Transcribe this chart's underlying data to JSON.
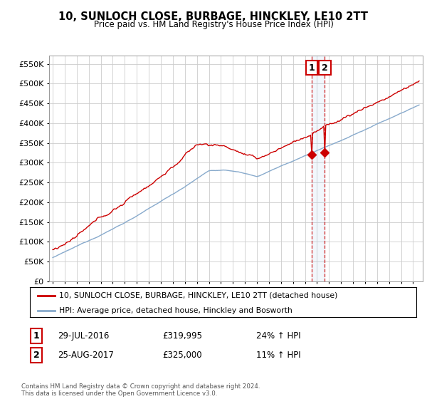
{
  "title": "10, SUNLOCH CLOSE, BURBAGE, HINCKLEY, LE10 2TT",
  "subtitle": "Price paid vs. HM Land Registry's House Price Index (HPI)",
  "legend_line1": "10, SUNLOCH CLOSE, BURBAGE, HINCKLEY, LE10 2TT (detached house)",
  "legend_line2": "HPI: Average price, detached house, Hinckley and Bosworth",
  "transaction1_label": "1",
  "transaction1_date": "29-JUL-2016",
  "transaction1_price": "£319,995",
  "transaction1_hpi": "24% ↑ HPI",
  "transaction2_label": "2",
  "transaction2_date": "25-AUG-2017",
  "transaction2_price": "£325,000",
  "transaction2_hpi": "11% ↑ HPI",
  "footer": "Contains HM Land Registry data © Crown copyright and database right 2024.\nThis data is licensed under the Open Government Licence v3.0.",
  "red_color": "#cc0000",
  "blue_color": "#88aacc",
  "dashed_color": "#cc0000",
  "grid_color": "#cccccc",
  "background_color": "#ffffff",
  "ylim": [
    0,
    570000
  ],
  "yticks": [
    0,
    50000,
    100000,
    150000,
    200000,
    250000,
    300000,
    350000,
    400000,
    450000,
    500000,
    550000
  ],
  "transaction1_x": 2016.57,
  "transaction1_y": 319995,
  "transaction2_x": 2017.65,
  "transaction2_y": 325000,
  "xmin": 1994.7,
  "xmax": 2025.8
}
